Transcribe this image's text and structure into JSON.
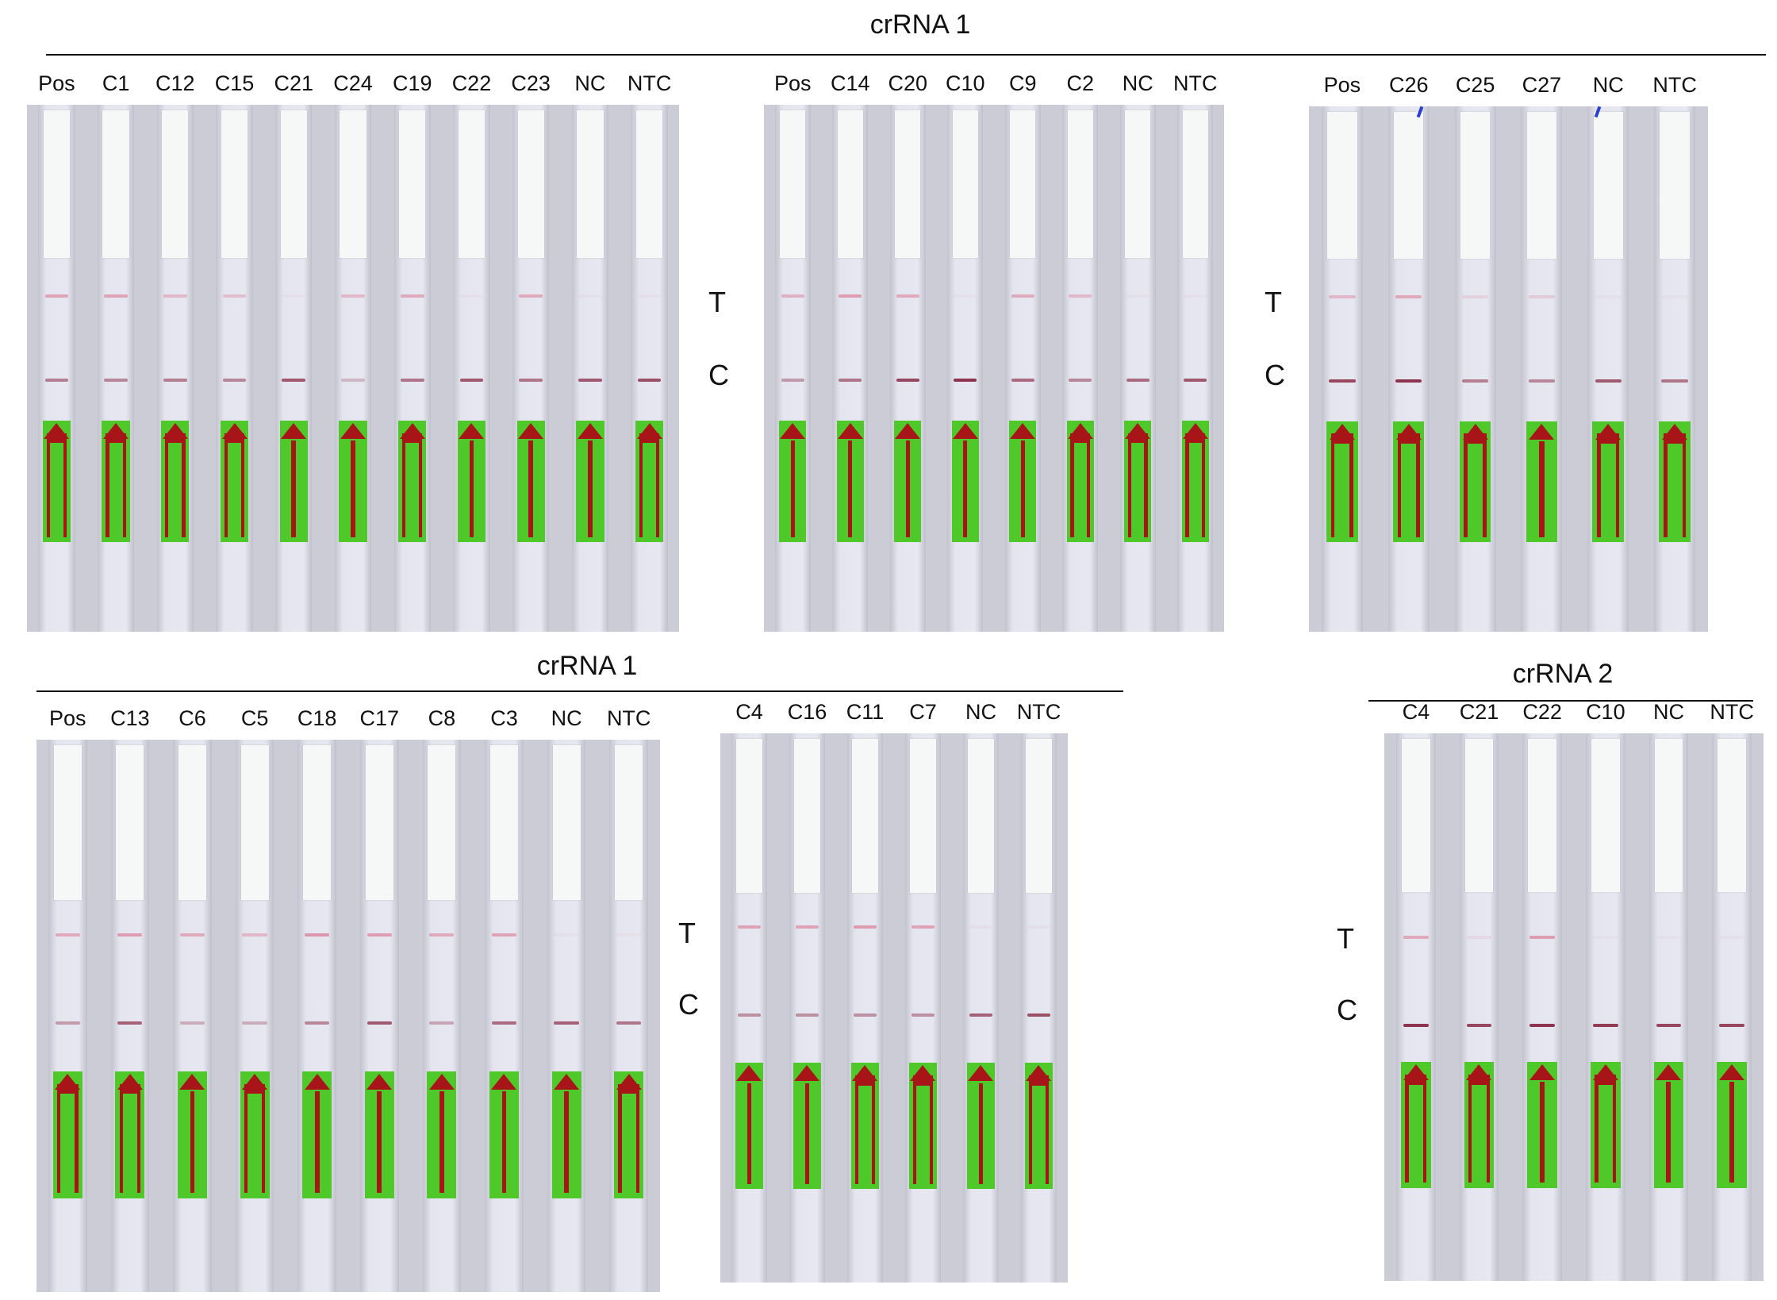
{
  "groups": [
    {
      "title": "crRNA 1"
    },
    {
      "title": "crRNA 1"
    },
    {
      "title": "crRNA 2"
    }
  ],
  "markers": {
    "test_line": "T",
    "control_line": "C"
  },
  "colors": {
    "background": "#ffffff",
    "strip": "#e5e6ef",
    "sample_pad": "#f6f7f7",
    "sticker": "#4fc82a",
    "arrow": "#a71518",
    "test_band": "#d9607e",
    "control_band": "#8a2a44"
  },
  "panels": [
    {
      "lanes": [
        {
          "label": "Pos",
          "test": 0.5,
          "control": 0.55,
          "arrow": "forked"
        },
        {
          "label": "C1",
          "test": 0.5,
          "control": 0.5,
          "arrow": "forked"
        },
        {
          "label": "C12",
          "test": 0.35,
          "control": 0.55,
          "arrow": "forked"
        },
        {
          "label": "C15",
          "test": 0.3,
          "control": 0.5,
          "arrow": "forked"
        },
        {
          "label": "C21",
          "test": 0.05,
          "control": 0.75,
          "arrow": "straight"
        },
        {
          "label": "C24",
          "test": 0.35,
          "control": 0.25,
          "arrow": "straight"
        },
        {
          "label": "C19",
          "test": 0.45,
          "control": 0.6,
          "arrow": "forked"
        },
        {
          "label": "C22",
          "test": 0.05,
          "control": 0.75,
          "arrow": "straight"
        },
        {
          "label": "C23",
          "test": 0.45,
          "control": 0.6,
          "arrow": "straight"
        },
        {
          "label": "NC",
          "test": 0.05,
          "control": 0.75,
          "arrow": "straight"
        },
        {
          "label": "NTC",
          "test": 0.05,
          "control": 0.8,
          "arrow": "forked"
        }
      ]
    },
    {
      "lanes": [
        {
          "label": "Pos",
          "test": 0.4,
          "control": 0.4,
          "arrow": "straight"
        },
        {
          "label": "C14",
          "test": 0.55,
          "control": 0.6,
          "arrow": "straight"
        },
        {
          "label": "C20",
          "test": 0.45,
          "control": 0.85,
          "arrow": "straight"
        },
        {
          "label": "C10",
          "test": 0.05,
          "control": 0.95,
          "arrow": "straight"
        },
        {
          "label": "C9",
          "test": 0.45,
          "control": 0.65,
          "arrow": "straight"
        },
        {
          "label": "C2",
          "test": 0.35,
          "control": 0.5,
          "arrow": "forked"
        },
        {
          "label": "NC",
          "test": 0.05,
          "control": 0.65,
          "arrow": "forked"
        },
        {
          "label": "NTC",
          "test": 0.05,
          "control": 0.75,
          "arrow": "forked"
        }
      ]
    },
    {
      "lanes": [
        {
          "label": "Pos",
          "test": 0.35,
          "control": 0.85,
          "arrow": "forked"
        },
        {
          "label": "C26",
          "test": 0.45,
          "control": 0.95,
          "arrow": "forked"
        },
        {
          "label": "C25",
          "test": 0.15,
          "control": 0.55,
          "arrow": "forked"
        },
        {
          "label": "C27",
          "test": 0.2,
          "control": 0.5,
          "arrow": "straight"
        },
        {
          "label": "NC",
          "test": 0.05,
          "control": 0.75,
          "arrow": "forked"
        },
        {
          "label": "NTC",
          "test": 0.05,
          "control": 0.6,
          "arrow": "forked"
        }
      ]
    },
    {
      "lanes": [
        {
          "label": "Pos",
          "test": 0.45,
          "control": 0.4,
          "arrow": "forked"
        },
        {
          "label": "C13",
          "test": 0.55,
          "control": 0.7,
          "arrow": "forked"
        },
        {
          "label": "C6",
          "test": 0.45,
          "control": 0.3,
          "arrow": "straight"
        },
        {
          "label": "C5",
          "test": 0.35,
          "control": 0.3,
          "arrow": "forked"
        },
        {
          "label": "C18",
          "test": 0.6,
          "control": 0.5,
          "arrow": "straight"
        },
        {
          "label": "C17",
          "test": 0.55,
          "control": 0.75,
          "arrow": "straight"
        },
        {
          "label": "C8",
          "test": 0.45,
          "control": 0.35,
          "arrow": "straight"
        },
        {
          "label": "C3",
          "test": 0.5,
          "control": 0.65,
          "arrow": "straight"
        },
        {
          "label": "NC",
          "test": 0.05,
          "control": 0.7,
          "arrow": "straight"
        },
        {
          "label": "NTC",
          "test": 0.05,
          "control": 0.6,
          "arrow": "forked"
        }
      ]
    },
    {
      "lanes": [
        {
          "label": "C4",
          "test": 0.5,
          "control": 0.45,
          "arrow": "straight"
        },
        {
          "label": "C16",
          "test": 0.5,
          "control": 0.45,
          "arrow": "straight"
        },
        {
          "label": "C11",
          "test": 0.55,
          "control": 0.45,
          "arrow": "forked"
        },
        {
          "label": "C7",
          "test": 0.5,
          "control": 0.45,
          "arrow": "forked"
        },
        {
          "label": "NC",
          "test": 0.05,
          "control": 0.7,
          "arrow": "straight"
        },
        {
          "label": "NTC",
          "test": 0.05,
          "control": 0.8,
          "arrow": "forked"
        }
      ]
    },
    {
      "lanes": [
        {
          "label": "C4",
          "test": 0.45,
          "control": 0.95,
          "arrow": "forked"
        },
        {
          "label": "C21",
          "test": 0.1,
          "control": 0.85,
          "arrow": "forked"
        },
        {
          "label": "C22",
          "test": 0.55,
          "control": 0.95,
          "arrow": "straight"
        },
        {
          "label": "C10",
          "test": 0.05,
          "control": 0.9,
          "arrow": "forked"
        },
        {
          "label": "NC",
          "test": 0.05,
          "control": 0.85,
          "arrow": "straight"
        },
        {
          "label": "NTC",
          "test": 0.05,
          "control": 0.85,
          "arrow": "straight"
        }
      ]
    }
  ]
}
